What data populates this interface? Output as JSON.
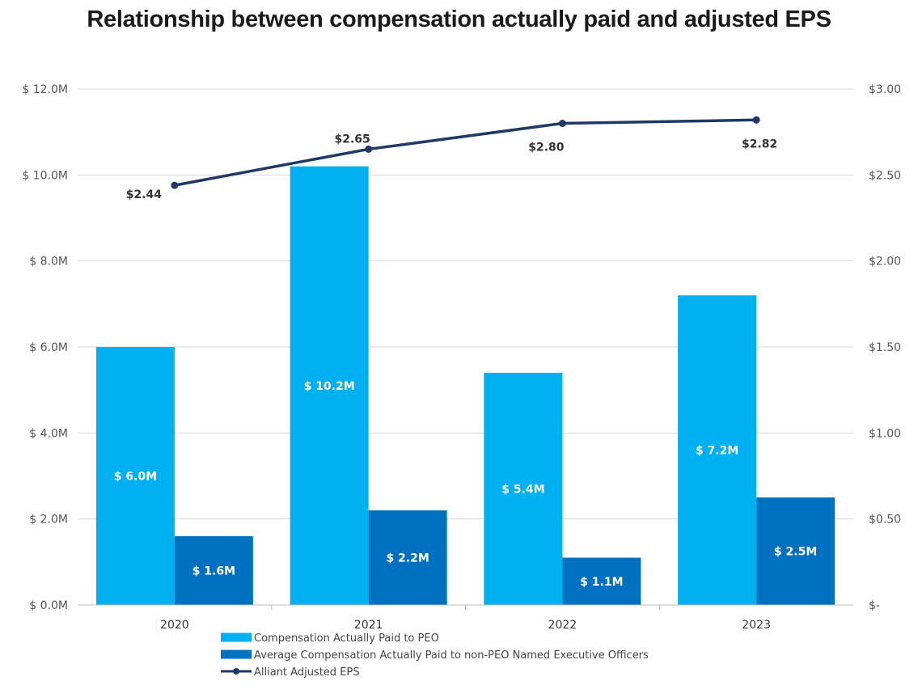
{
  "chart_data": {
    "type": "bar",
    "title": "Relationship between compensation actually paid and adjusted EPS",
    "categories": [
      "2020",
      "2021",
      "2022",
      "2023"
    ],
    "series": [
      {
        "name": "Compensation Actually Paid to PEO",
        "axis": "left",
        "kind": "bar",
        "color": "#00b0f0",
        "values": [
          6.0,
          10.2,
          5.4,
          7.2
        ],
        "labels": [
          "$ 6.0M",
          "$ 10.2M",
          "$ 5.4M",
          "$ 7.2M"
        ]
      },
      {
        "name": "Average Compensation Actually Paid to non-PEO Named Executive Officers",
        "axis": "left",
        "kind": "bar",
        "color": "#0070c0",
        "values": [
          1.6,
          2.2,
          1.1,
          2.5
        ],
        "labels": [
          "$ 1.6M",
          "$ 2.2M",
          "$ 1.1M",
          "$ 2.5M"
        ]
      },
      {
        "name": "Alliant Adjusted EPS",
        "axis": "right",
        "kind": "line",
        "color": "#1f3864",
        "values": [
          2.44,
          2.65,
          2.8,
          2.82
        ],
        "labels": [
          "$2.44",
          "$2.65",
          "$2.80",
          "$2.82"
        ]
      }
    ],
    "y_left": {
      "range": [
        0,
        12
      ],
      "ticks": [
        0,
        2,
        4,
        6,
        8,
        10,
        12
      ],
      "tick_labels": [
        "$ 0.0M",
        "$ 2.0M",
        "$ 4.0M",
        "$ 6.0M",
        "$ 8.0M",
        "$ 10.0M",
        "$ 12.0M"
      ]
    },
    "y_right": {
      "range": [
        0,
        3
      ],
      "ticks": [
        0,
        0.5,
        1,
        1.5,
        2,
        2.5,
        3
      ],
      "tick_labels": [
        "$-",
        "$0.50",
        "$1.00",
        "$1.50",
        "$2.00",
        "$2.50",
        "$3.00"
      ]
    },
    "grid": true,
    "legend": "bottom-left",
    "gridColor": "#d9d9d9"
  }
}
